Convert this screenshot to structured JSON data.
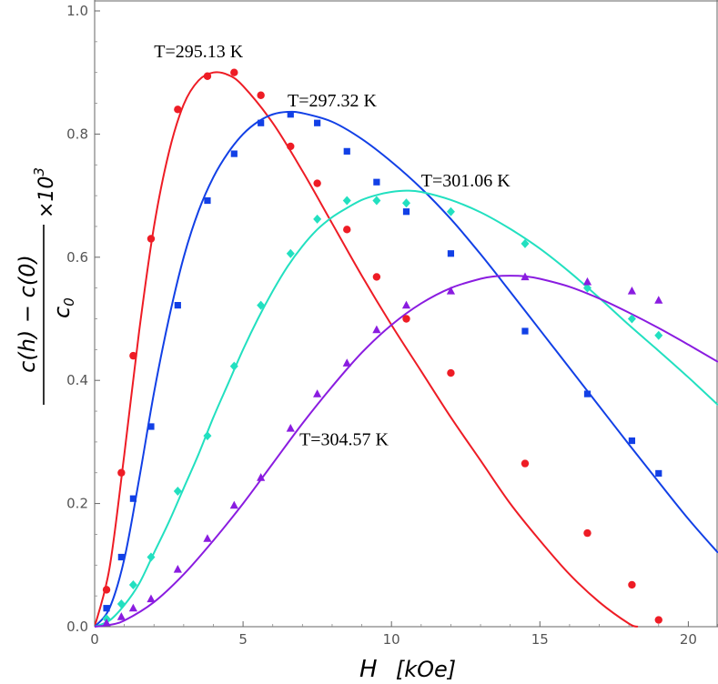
{
  "chart_data": {
    "type": "scatter",
    "title": "",
    "xlabel": "H",
    "xlabel_unit": "[kOe]",
    "ylabel": {
      "numerator": "c(h) − c(0)",
      "denominator": "c",
      "denominator_sub": "0",
      "times": "×10",
      "exponent": "3"
    },
    "xlim": [
      0,
      21
    ],
    "ylim": [
      0,
      1.0
    ],
    "xticks": [
      0,
      5,
      10,
      15,
      20
    ],
    "yticks": [
      0.0,
      0.2,
      0.4,
      0.6,
      0.8,
      1.0
    ],
    "xtick_labels": [
      "0",
      "5",
      "10",
      "15",
      "20"
    ],
    "ytick_labels": [
      "0.0",
      "0.2",
      "0.4",
      "0.6",
      "0.8",
      "1.0"
    ],
    "grid": false,
    "series": [
      {
        "name": "T=295.13 K",
        "color": "#ee1c25",
        "marker": "circle",
        "points": [
          [
            0.4,
            0.06
          ],
          [
            0.9,
            0.25
          ],
          [
            1.3,
            0.44
          ],
          [
            1.9,
            0.63
          ],
          [
            2.8,
            0.84
          ],
          [
            3.8,
            0.894
          ],
          [
            4.7,
            0.9
          ],
          [
            5.6,
            0.863
          ],
          [
            6.6,
            0.78
          ],
          [
            7.5,
            0.72
          ],
          [
            8.5,
            0.645
          ],
          [
            9.5,
            0.568
          ],
          [
            10.5,
            0.5
          ],
          [
            12.0,
            0.412
          ],
          [
            14.5,
            0.265
          ],
          [
            16.6,
            0.152
          ],
          [
            18.1,
            0.068
          ],
          [
            19.0,
            0.011
          ]
        ],
        "fit": [
          [
            0,
            0
          ],
          [
            0.5,
            0.095
          ],
          [
            1,
            0.28
          ],
          [
            1.5,
            0.48
          ],
          [
            2,
            0.65
          ],
          [
            2.5,
            0.77
          ],
          [
            3,
            0.848
          ],
          [
            3.5,
            0.887
          ],
          [
            4,
            0.9
          ],
          [
            4.5,
            0.896
          ],
          [
            5,
            0.878
          ],
          [
            6,
            0.818
          ],
          [
            7,
            0.74
          ],
          [
            8,
            0.655
          ],
          [
            9,
            0.57
          ],
          [
            10,
            0.49
          ],
          [
            11,
            0.415
          ],
          [
            12,
            0.34
          ],
          [
            13,
            0.27
          ],
          [
            14,
            0.2
          ],
          [
            15,
            0.14
          ],
          [
            16,
            0.085
          ],
          [
            17,
            0.04
          ],
          [
            18,
            0.005
          ],
          [
            18.3,
            0.0
          ]
        ]
      },
      {
        "name": "T=297.32 K",
        "color": "#1240e6",
        "marker": "square",
        "points": [
          [
            0.4,
            0.03
          ],
          [
            0.9,
            0.113
          ],
          [
            1.3,
            0.208
          ],
          [
            1.9,
            0.325
          ],
          [
            2.8,
            0.522
          ],
          [
            3.8,
            0.692
          ],
          [
            4.7,
            0.768
          ],
          [
            5.6,
            0.818
          ],
          [
            6.6,
            0.832
          ],
          [
            7.5,
            0.818
          ],
          [
            8.5,
            0.772
          ],
          [
            9.5,
            0.722
          ],
          [
            10.5,
            0.674
          ],
          [
            12.0,
            0.606
          ],
          [
            14.5,
            0.48
          ],
          [
            16.6,
            0.378
          ],
          [
            18.1,
            0.302
          ],
          [
            19.0,
            0.249
          ]
        ],
        "fit": [
          [
            0,
            0
          ],
          [
            0.5,
            0.03
          ],
          [
            1,
            0.11
          ],
          [
            1.5,
            0.24
          ],
          [
            2,
            0.38
          ],
          [
            2.5,
            0.5
          ],
          [
            3,
            0.6
          ],
          [
            3.5,
            0.675
          ],
          [
            4,
            0.73
          ],
          [
            4.5,
            0.77
          ],
          [
            5,
            0.8
          ],
          [
            5.5,
            0.82
          ],
          [
            6,
            0.832
          ],
          [
            6.5,
            0.836
          ],
          [
            7,
            0.834
          ],
          [
            8,
            0.82
          ],
          [
            9,
            0.792
          ],
          [
            10,
            0.755
          ],
          [
            11,
            0.712
          ],
          [
            12,
            0.662
          ],
          [
            13,
            0.605
          ],
          [
            14,
            0.544
          ],
          [
            15,
            0.482
          ],
          [
            16,
            0.42
          ],
          [
            17,
            0.358
          ],
          [
            18,
            0.296
          ],
          [
            19,
            0.235
          ],
          [
            20,
            0.175
          ],
          [
            21,
            0.12
          ]
        ]
      },
      {
        "name": "T=301.06 K",
        "color": "#22e0c0",
        "marker": "diamond",
        "points": [
          [
            0.4,
            0.013
          ],
          [
            0.9,
            0.037
          ],
          [
            1.3,
            0.068
          ],
          [
            1.9,
            0.113
          ],
          [
            2.8,
            0.22
          ],
          [
            3.8,
            0.31
          ],
          [
            4.7,
            0.423
          ],
          [
            5.6,
            0.522
          ],
          [
            6.6,
            0.606
          ],
          [
            7.5,
            0.662
          ],
          [
            8.5,
            0.692
          ],
          [
            9.5,
            0.692
          ],
          [
            10.5,
            0.688
          ],
          [
            12.0,
            0.674
          ],
          [
            14.5,
            0.622
          ],
          [
            16.6,
            0.55
          ],
          [
            18.1,
            0.5
          ],
          [
            19.0,
            0.473
          ]
        ],
        "fit": [
          [
            0,
            0
          ],
          [
            0.5,
            0.01
          ],
          [
            1,
            0.035
          ],
          [
            1.5,
            0.07
          ],
          [
            2,
            0.12
          ],
          [
            2.5,
            0.17
          ],
          [
            3,
            0.225
          ],
          [
            3.5,
            0.28
          ],
          [
            4,
            0.34
          ],
          [
            4.5,
            0.395
          ],
          [
            5,
            0.45
          ],
          [
            5.5,
            0.5
          ],
          [
            6,
            0.545
          ],
          [
            6.5,
            0.585
          ],
          [
            7,
            0.618
          ],
          [
            7.5,
            0.645
          ],
          [
            8,
            0.665
          ],
          [
            8.5,
            0.68
          ],
          [
            9,
            0.693
          ],
          [
            9.5,
            0.701
          ],
          [
            10,
            0.706
          ],
          [
            10.5,
            0.708
          ],
          [
            11,
            0.706
          ],
          [
            12,
            0.693
          ],
          [
            13,
            0.673
          ],
          [
            14,
            0.646
          ],
          [
            15,
            0.614
          ],
          [
            16,
            0.576
          ],
          [
            17,
            0.534
          ],
          [
            18,
            0.49
          ],
          [
            19,
            0.448
          ],
          [
            20,
            0.405
          ],
          [
            21,
            0.36
          ]
        ]
      },
      {
        "name": "T=304.57 K",
        "color": "#8a1ce0",
        "marker": "triangle",
        "points": [
          [
            0.4,
            0.006
          ],
          [
            0.9,
            0.016
          ],
          [
            1.3,
            0.03
          ],
          [
            1.9,
            0.045
          ],
          [
            2.8,
            0.093
          ],
          [
            3.8,
            0.143
          ],
          [
            4.7,
            0.197
          ],
          [
            5.6,
            0.242
          ],
          [
            6.6,
            0.322
          ],
          [
            7.5,
            0.378
          ],
          [
            8.5,
            0.428
          ],
          [
            9.5,
            0.482
          ],
          [
            10.5,
            0.522
          ],
          [
            12.0,
            0.545
          ],
          [
            14.5,
            0.568
          ],
          [
            16.6,
            0.56
          ],
          [
            18.1,
            0.545
          ],
          [
            19.0,
            0.53
          ]
        ],
        "fit": [
          [
            0,
            0
          ],
          [
            0.5,
            0.003
          ],
          [
            1,
            0.01
          ],
          [
            2,
            0.04
          ],
          [
            3,
            0.085
          ],
          [
            4,
            0.14
          ],
          [
            5,
            0.2
          ],
          [
            6,
            0.265
          ],
          [
            7,
            0.33
          ],
          [
            8,
            0.39
          ],
          [
            9,
            0.445
          ],
          [
            10,
            0.49
          ],
          [
            11,
            0.525
          ],
          [
            12,
            0.55
          ],
          [
            13,
            0.565
          ],
          [
            13.5,
            0.569
          ],
          [
            14,
            0.57
          ],
          [
            14.5,
            0.569
          ],
          [
            15,
            0.565
          ],
          [
            16,
            0.552
          ],
          [
            17,
            0.533
          ],
          [
            18,
            0.51
          ],
          [
            19,
            0.485
          ],
          [
            20,
            0.458
          ],
          [
            21,
            0.43
          ]
        ]
      }
    ],
    "labels": [
      {
        "text": "T=295.13 K",
        "x": 2.0,
        "y": 0.925
      },
      {
        "text": "T=297.32 K",
        "x": 6.5,
        "y": 0.845
      },
      {
        "text": "T=301.06 K",
        "x": 11.0,
        "y": 0.715
      },
      {
        "text": "T=304.57 K",
        "x": 6.9,
        "y": 0.295
      }
    ]
  }
}
